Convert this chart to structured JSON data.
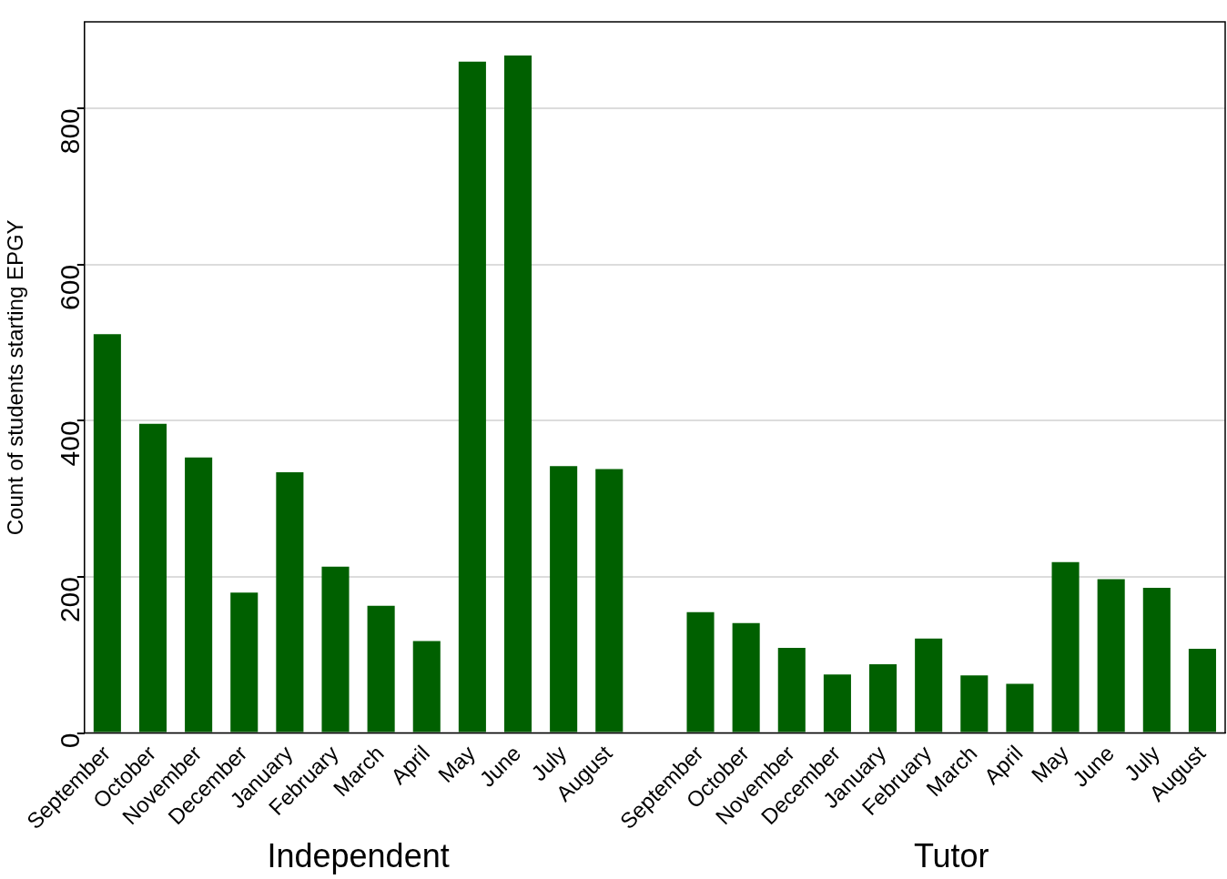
{
  "chart_data": {
    "type": "bar",
    "ylabel": "Count of students starting EPGY",
    "categories": [
      "September",
      "October",
      "November",
      "December",
      "January",
      "February",
      "March",
      "April",
      "May",
      "June",
      "July",
      "August",
      null,
      "September",
      "October",
      "November",
      "December",
      "January",
      "February",
      "March",
      "April",
      "May",
      "June",
      "July",
      "August"
    ],
    "values": [
      511,
      396,
      353,
      180,
      334,
      213,
      163,
      118,
      860,
      868,
      342,
      338,
      null,
      155,
      141,
      109,
      75,
      88,
      121,
      74,
      63,
      219,
      197,
      186,
      108
    ],
    "color": "#006000",
    "ylim": [
      0,
      911
    ],
    "yticks": [
      0,
      200,
      400,
      600,
      800
    ],
    "grid": "y",
    "legend": false,
    "annotations": [
      "Independent",
      "Tutor"
    ]
  }
}
